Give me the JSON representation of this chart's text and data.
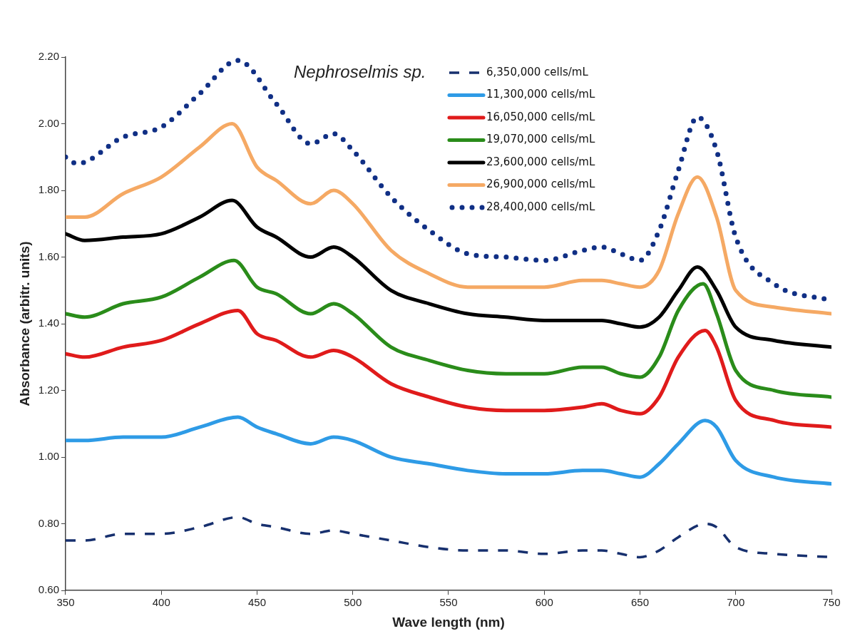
{
  "chart_data": {
    "type": "line",
    "title": "Nephroselmis sp.",
    "xlabel": "Wave length (nm)",
    "ylabel": "Absorbance (arbitr. units)",
    "legend": "top right",
    "grid": false,
    "xlim": [
      350,
      750
    ],
    "xticks": [
      350,
      400,
      450,
      500,
      550,
      600,
      650,
      700,
      750
    ],
    "ylim": [
      0.6,
      2.2
    ],
    "yticks": [
      {
        "value": 0.6,
        "label": "0.60"
      },
      {
        "value": 0.8,
        "label": "0.80"
      },
      {
        "value": 1.0,
        "label": "1.00"
      },
      {
        "value": 1.2,
        "label": "1.20"
      },
      {
        "value": 1.4,
        "label": "1.40"
      },
      {
        "value": 1.6,
        "label": "1.60"
      },
      {
        "value": 1.8,
        "label": "1.80"
      },
      {
        "value": 2.0,
        "label": "2.00"
      },
      {
        "value": 2.2,
        "label": "2.20"
      }
    ],
    "series": [
      {
        "name": "6,350,000 cells/mL",
        "color": "#17306e",
        "line_style": "dashed",
        "x": [
          350,
          360,
          380,
          400,
          420,
          440,
          450,
          460,
          478,
          490,
          500,
          520,
          540,
          560,
          580,
          600,
          620,
          630,
          640,
          650,
          660,
          670,
          684,
          690,
          700,
          720,
          750
        ],
        "values": [
          0.75,
          0.75,
          0.77,
          0.77,
          0.79,
          0.82,
          0.8,
          0.79,
          0.77,
          0.78,
          0.77,
          0.75,
          0.73,
          0.72,
          0.72,
          0.71,
          0.72,
          0.72,
          0.71,
          0.7,
          0.72,
          0.76,
          0.8,
          0.79,
          0.73,
          0.71,
          0.7
        ]
      },
      {
        "name": "11,300,000 cells/mL",
        "color": "#2e9be6",
        "line_style": "solid",
        "x": [
          350,
          360,
          380,
          400,
          420,
          440,
          450,
          460,
          478,
          490,
          500,
          520,
          540,
          560,
          580,
          600,
          620,
          630,
          640,
          650,
          660,
          670,
          684,
          690,
          700,
          720,
          750
        ],
        "values": [
          1.05,
          1.05,
          1.06,
          1.06,
          1.09,
          1.12,
          1.09,
          1.07,
          1.04,
          1.06,
          1.05,
          1.0,
          0.98,
          0.96,
          0.95,
          0.95,
          0.96,
          0.96,
          0.95,
          0.94,
          0.98,
          1.04,
          1.11,
          1.09,
          0.99,
          0.94,
          0.92
        ]
      },
      {
        "name": "16,050,000 cells/mL",
        "color": "#e01b1b",
        "line_style": "solid",
        "x": [
          350,
          360,
          380,
          400,
          420,
          440,
          450,
          460,
          478,
          490,
          500,
          520,
          540,
          560,
          580,
          600,
          620,
          630,
          640,
          650,
          660,
          670,
          684,
          690,
          700,
          720,
          750
        ],
        "values": [
          1.31,
          1.3,
          1.33,
          1.35,
          1.4,
          1.44,
          1.37,
          1.35,
          1.3,
          1.32,
          1.3,
          1.22,
          1.18,
          1.15,
          1.14,
          1.14,
          1.15,
          1.16,
          1.14,
          1.13,
          1.18,
          1.3,
          1.38,
          1.33,
          1.17,
          1.11,
          1.09
        ]
      },
      {
        "name": "19,070,000 cells/mL",
        "color": "#2a8c1a",
        "line_style": "solid",
        "x": [
          350,
          360,
          380,
          400,
          420,
          438,
          450,
          460,
          478,
          490,
          500,
          520,
          540,
          560,
          580,
          600,
          620,
          630,
          640,
          650,
          660,
          670,
          683,
          690,
          700,
          720,
          750
        ],
        "values": [
          1.43,
          1.42,
          1.46,
          1.48,
          1.54,
          1.59,
          1.51,
          1.49,
          1.43,
          1.46,
          1.43,
          1.33,
          1.29,
          1.26,
          1.25,
          1.25,
          1.27,
          1.27,
          1.25,
          1.24,
          1.3,
          1.44,
          1.52,
          1.43,
          1.26,
          1.2,
          1.18
        ]
      },
      {
        "name": "23,600,000 cells/mL",
        "color": "#000000",
        "line_style": "solid",
        "x": [
          350,
          360,
          380,
          400,
          420,
          437,
          450,
          460,
          478,
          490,
          500,
          520,
          540,
          560,
          580,
          600,
          620,
          630,
          640,
          650,
          660,
          670,
          680,
          690,
          700,
          720,
          750
        ],
        "values": [
          1.67,
          1.65,
          1.66,
          1.67,
          1.72,
          1.77,
          1.69,
          1.66,
          1.6,
          1.63,
          1.6,
          1.5,
          1.46,
          1.43,
          1.42,
          1.41,
          1.41,
          1.41,
          1.4,
          1.39,
          1.42,
          1.5,
          1.57,
          1.5,
          1.39,
          1.35,
          1.33
        ]
      },
      {
        "name": "26,900,000 cells/mL",
        "color": "#f5a964",
        "line_style": "solid",
        "x": [
          350,
          360,
          380,
          400,
          420,
          437,
          450,
          460,
          478,
          490,
          500,
          520,
          540,
          560,
          580,
          600,
          620,
          630,
          640,
          650,
          660,
          670,
          680,
          690,
          700,
          720,
          750
        ],
        "values": [
          1.72,
          1.72,
          1.79,
          1.84,
          1.93,
          2.0,
          1.87,
          1.83,
          1.76,
          1.8,
          1.76,
          1.62,
          1.55,
          1.51,
          1.51,
          1.51,
          1.53,
          1.53,
          1.52,
          1.51,
          1.56,
          1.73,
          1.84,
          1.72,
          1.5,
          1.45,
          1.43
        ]
      },
      {
        "name": "28,400,000 cells/mL",
        "color": "#102f85",
        "line_style": "dotted",
        "x": [
          350,
          356,
          380,
          400,
          420,
          440,
          460,
          478,
          490,
          500,
          520,
          540,
          560,
          580,
          600,
          620,
          630,
          640,
          650,
          660,
          670,
          680,
          690,
          700,
          720,
          750
        ],
        "values": [
          1.9,
          1.88,
          1.96,
          1.99,
          2.09,
          2.19,
          2.06,
          1.94,
          1.97,
          1.92,
          1.78,
          1.68,
          1.61,
          1.6,
          1.59,
          1.62,
          1.63,
          1.61,
          1.59,
          1.68,
          1.86,
          2.02,
          1.92,
          1.66,
          1.52,
          1.47
        ]
      }
    ]
  }
}
